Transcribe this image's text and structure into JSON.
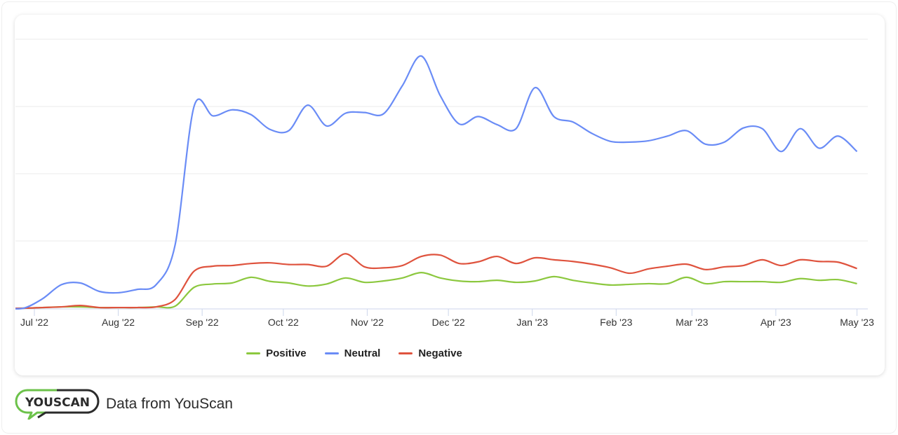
{
  "chart_data": {
    "type": "line",
    "title": "",
    "xlabel": "",
    "ylabel": "",
    "xlim": [
      "2022-06-24",
      "2023-05-05"
    ],
    "ylim": [
      0,
      4
    ],
    "grid": true,
    "y_tick_labels_shown": false,
    "legend_placement": "bottom",
    "x_ticks": [
      {
        "date": "2022-07-01",
        "label": "Jul '22"
      },
      {
        "date": "2022-08-01",
        "label": "Aug '22"
      },
      {
        "date": "2022-09-01",
        "label": "Sep '22"
      },
      {
        "date": "2022-10-01",
        "label": "Oct '22"
      },
      {
        "date": "2022-11-01",
        "label": "Nov '22"
      },
      {
        "date": "2022-12-01",
        "label": "Dec '22"
      },
      {
        "date": "2023-01-01",
        "label": "Jan '23"
      },
      {
        "date": "2023-02-01",
        "label": "Feb '23"
      },
      {
        "date": "2023-03-01",
        "label": "Mar '23"
      },
      {
        "date": "2023-04-01",
        "label": "Apr '23"
      },
      {
        "date": "2023-05-01",
        "label": "May '23"
      }
    ],
    "x": [
      "2022-06-20",
      "2022-06-27",
      "2022-07-04",
      "2022-07-11",
      "2022-07-18",
      "2022-07-25",
      "2022-08-01",
      "2022-08-08",
      "2022-08-15",
      "2022-08-22",
      "2022-08-29",
      "2022-09-05",
      "2022-09-12",
      "2022-09-19",
      "2022-09-26",
      "2022-10-03",
      "2022-10-10",
      "2022-10-17",
      "2022-10-24",
      "2022-10-31",
      "2022-11-07",
      "2022-11-14",
      "2022-11-21",
      "2022-11-28",
      "2022-12-05",
      "2022-12-12",
      "2022-12-19",
      "2022-12-26",
      "2023-01-02",
      "2023-01-09",
      "2023-01-16",
      "2023-01-23",
      "2023-01-30",
      "2023-02-06",
      "2023-02-13",
      "2023-02-20",
      "2023-02-27",
      "2023-03-06",
      "2023-03-13",
      "2023-03-20",
      "2023-03-27",
      "2023-04-03",
      "2023-04-10",
      "2023-04-17",
      "2023-04-24",
      "2023-05-01"
    ],
    "series": [
      {
        "name": "Positive",
        "color": "#8cc83f",
        "values": [
          0,
          0,
          0.01,
          0.02,
          0.02,
          0.01,
          0.01,
          0.01,
          0.02,
          0.03,
          0.31,
          0.36,
          0.375,
          0.46,
          0.4,
          0.375,
          0.33,
          0.36,
          0.45,
          0.385,
          0.405,
          0.45,
          0.53,
          0.45,
          0.405,
          0.395,
          0.415,
          0.385,
          0.405,
          0.47,
          0.415,
          0.375,
          0.345,
          0.355,
          0.365,
          0.365,
          0.46,
          0.365,
          0.395,
          0.395,
          0.395,
          0.385,
          0.44,
          0.415,
          0.425,
          0.365
        ]
      },
      {
        "name": "Neutral",
        "color": "#6a8cf6",
        "values": [
          0,
          0,
          0.14,
          0.35,
          0.375,
          0.25,
          0.23,
          0.28,
          0.35,
          0.94,
          3.0,
          2.86,
          2.95,
          2.88,
          2.66,
          2.64,
          3.02,
          2.71,
          2.9,
          2.91,
          2.89,
          3.31,
          3.75,
          3.16,
          2.74,
          2.85,
          2.73,
          2.67,
          3.28,
          2.85,
          2.77,
          2.6,
          2.48,
          2.47,
          2.49,
          2.56,
          2.64,
          2.44,
          2.47,
          2.68,
          2.67,
          2.33,
          2.67,
          2.38,
          2.56,
          2.33
        ]
      },
      {
        "name": "Negative",
        "color": "#df533e",
        "values": [
          0,
          0,
          0.01,
          0.02,
          0.04,
          0.01,
          0.01,
          0.01,
          0.02,
          0.13,
          0.55,
          0.625,
          0.635,
          0.665,
          0.675,
          0.65,
          0.65,
          0.625,
          0.81,
          0.615,
          0.6,
          0.635,
          0.77,
          0.79,
          0.665,
          0.69,
          0.77,
          0.665,
          0.75,
          0.72,
          0.695,
          0.655,
          0.6,
          0.52,
          0.585,
          0.625,
          0.655,
          0.575,
          0.615,
          0.635,
          0.72,
          0.635,
          0.72,
          0.695,
          0.685,
          0.59
        ]
      }
    ]
  },
  "footer": {
    "logo_text": "YOUSCAN",
    "text": "Data from YouScan"
  }
}
